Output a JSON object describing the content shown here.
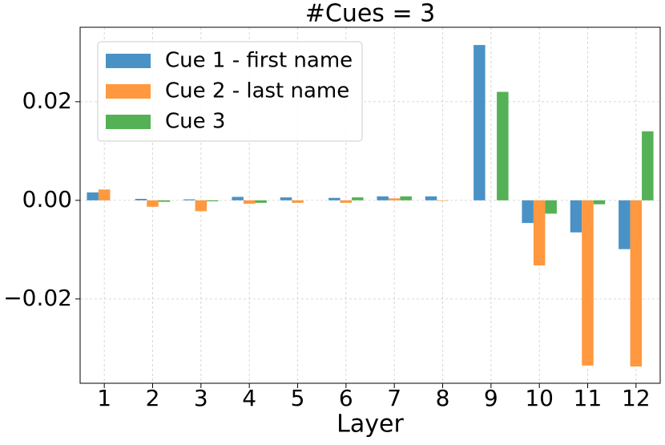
{
  "chart_data": {
    "type": "bar",
    "title": "#Cues = 3",
    "x_label": "Layer",
    "categories": [
      "1",
      "2",
      "3",
      "4",
      "5",
      "6",
      "7",
      "8",
      "9",
      "10",
      "11",
      "12"
    ],
    "series": [
      {
        "name": "Cue 1 - first name",
        "color": "#4a92c6",
        "values": [
          0.0016,
          0.0003,
          0.0002,
          0.0007,
          0.0006,
          0.0005,
          0.0008,
          0.0008,
          0.0315,
          -0.0046,
          -0.0065,
          -0.0099
        ]
      },
      {
        "name": "Cue 2 - last name",
        "color": "#ff983e",
        "values": [
          0.0022,
          -0.0013,
          -0.0022,
          -0.0007,
          -0.0005,
          -0.0005,
          0.0004,
          -0.0001,
          0,
          -0.0132,
          -0.0335,
          -0.0337
        ]
      },
      {
        "name": "Cue 3",
        "color": "#55b155",
        "values": [
          0,
          -0.0003,
          -0.0002,
          -0.0005,
          0,
          0.0006,
          0.0008,
          0,
          0.022,
          -0.0027,
          -0.0008,
          0.014
        ]
      }
    ],
    "ylim": [
      -0.0371,
      0.0351
    ],
    "yticks": [
      {
        "value": -0.02,
        "label": "−0.02"
      },
      {
        "value": 0,
        "label": "0.00"
      },
      0.02
    ],
    "grid": true,
    "legend": "upper left"
  }
}
